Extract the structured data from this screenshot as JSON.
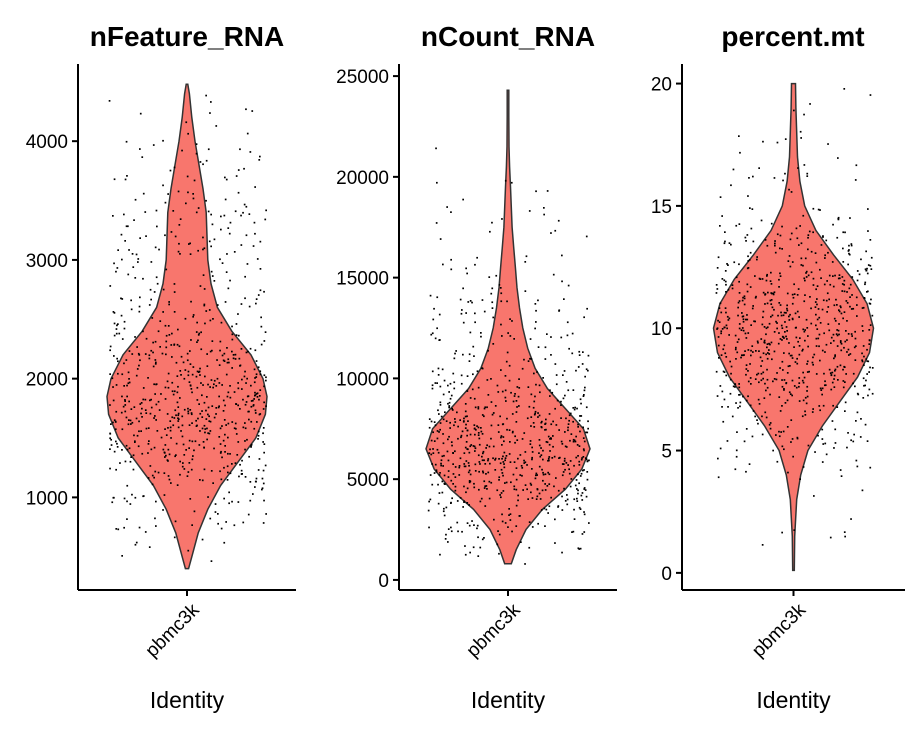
{
  "chart_data": [
    {
      "type": "violin",
      "title": "nFeature_RNA",
      "category": "pbmc3k",
      "xlabel": "Identity",
      "ylabel": "",
      "ylim": [
        220,
        4650
      ],
      "yticks": [
        1000,
        2000,
        3000,
        4000
      ],
      "ytick_labels": [
        "1000",
        "2000",
        "3000",
        "4000"
      ],
      "data_min": 400,
      "data_max": 4480,
      "fill_color": "#F8766D",
      "violin_profile": [
        [
          400,
          0.02
        ],
        [
          500,
          0.06
        ],
        [
          700,
          0.14
        ],
        [
          900,
          0.26
        ],
        [
          1100,
          0.42
        ],
        [
          1300,
          0.64
        ],
        [
          1500,
          0.86
        ],
        [
          1700,
          0.98
        ],
        [
          1850,
          1.0
        ],
        [
          2000,
          0.95
        ],
        [
          2200,
          0.8
        ],
        [
          2400,
          0.56
        ],
        [
          2600,
          0.38
        ],
        [
          2800,
          0.3
        ],
        [
          3000,
          0.26
        ],
        [
          3200,
          0.25
        ],
        [
          3400,
          0.24
        ],
        [
          3600,
          0.2
        ],
        [
          3800,
          0.15
        ],
        [
          4000,
          0.1
        ],
        [
          4200,
          0.06
        ],
        [
          4400,
          0.03
        ],
        [
          4480,
          0.01
        ]
      ]
    },
    {
      "type": "violin",
      "title": "nCount_RNA",
      "category": "pbmc3k",
      "xlabel": "Identity",
      "ylabel": "",
      "ylim": [
        -500,
        25600
      ],
      "yticks": [
        0,
        5000,
        10000,
        15000,
        20000,
        25000
      ],
      "ytick_labels": [
        "0",
        "5000",
        "10000",
        "15000",
        "20000",
        "25000"
      ],
      "data_min": 800,
      "data_max": 24300,
      "fill_color": "#F8766D",
      "violin_profile": [
        [
          800,
          0.04
        ],
        [
          1500,
          0.1
        ],
        [
          2500,
          0.22
        ],
        [
          3500,
          0.42
        ],
        [
          4500,
          0.7
        ],
        [
          5500,
          0.9
        ],
        [
          6500,
          1.0
        ],
        [
          7500,
          0.92
        ],
        [
          8500,
          0.7
        ],
        [
          9500,
          0.48
        ],
        [
          10500,
          0.33
        ],
        [
          11500,
          0.24
        ],
        [
          12500,
          0.18
        ],
        [
          13500,
          0.14
        ],
        [
          14500,
          0.11
        ],
        [
          15500,
          0.09
        ],
        [
          16500,
          0.07
        ],
        [
          17500,
          0.05
        ],
        [
          18500,
          0.04
        ],
        [
          19500,
          0.03
        ],
        [
          20500,
          0.02
        ],
        [
          21500,
          0.012
        ],
        [
          23000,
          0.01
        ],
        [
          24300,
          0.01
        ]
      ]
    },
    {
      "type": "violin",
      "title": "percent.mt",
      "category": "pbmc3k",
      "xlabel": "Identity",
      "ylabel": "",
      "ylim": [
        -0.7,
        20.8
      ],
      "yticks": [
        0,
        5,
        10,
        15,
        20
      ],
      "ytick_labels": [
        "0",
        "5",
        "10",
        "15",
        "20"
      ],
      "data_min": 0.1,
      "data_max": 20,
      "fill_color": "#F8766D",
      "violin_profile": [
        [
          0.1,
          0.01
        ],
        [
          1.5,
          0.015
        ],
        [
          3,
          0.04
        ],
        [
          4,
          0.09
        ],
        [
          5,
          0.18
        ],
        [
          6,
          0.36
        ],
        [
          7,
          0.58
        ],
        [
          8,
          0.8
        ],
        [
          9,
          0.95
        ],
        [
          10,
          1.0
        ],
        [
          11,
          0.92
        ],
        [
          12,
          0.74
        ],
        [
          13,
          0.5
        ],
        [
          14,
          0.28
        ],
        [
          15,
          0.14
        ],
        [
          16,
          0.08
        ],
        [
          17,
          0.05
        ],
        [
          18,
          0.04
        ],
        [
          19,
          0.03
        ],
        [
          20,
          0.025
        ]
      ]
    }
  ]
}
